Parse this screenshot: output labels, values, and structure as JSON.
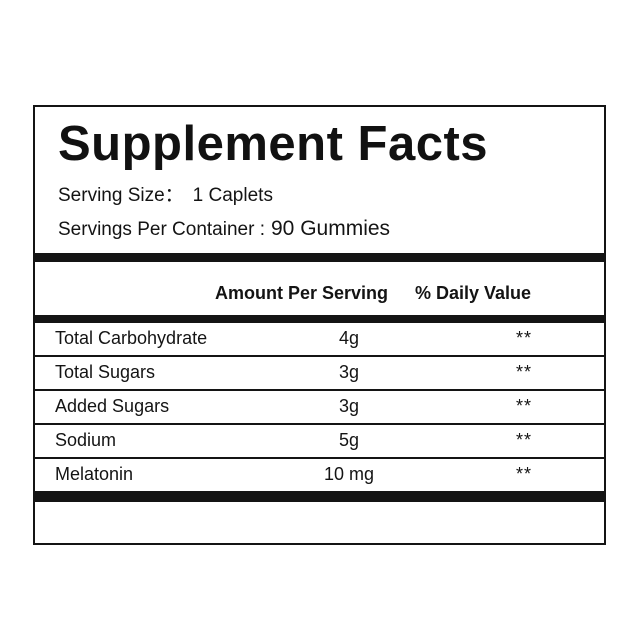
{
  "panel": {
    "title": "Supplement Facts",
    "serving_size": {
      "label": "Serving Size：",
      "value": "1 Caplets"
    },
    "servings_per_container": {
      "label": "Servings Per Container :",
      "value": "90 Gummies"
    },
    "columns": {
      "amount_per_serving": "Amount Per Serving",
      "percent_daily_value": "% Daily Value"
    },
    "rows": [
      {
        "nutrient": "Total Carbohydrate",
        "amount": "4g",
        "daily_value": "**"
      },
      {
        "nutrient": "Total Sugars",
        "amount": "3g",
        "daily_value": "**"
      },
      {
        "nutrient": "Added Sugars",
        "amount": "3g",
        "daily_value": "**"
      },
      {
        "nutrient": "Sodium",
        "amount": "5g",
        "daily_value": "**"
      },
      {
        "nutrient": "Melatonin",
        "amount": "10 mg",
        "daily_value": "**"
      }
    ],
    "colors": {
      "ink": "#141414",
      "background": "#ffffff"
    }
  }
}
